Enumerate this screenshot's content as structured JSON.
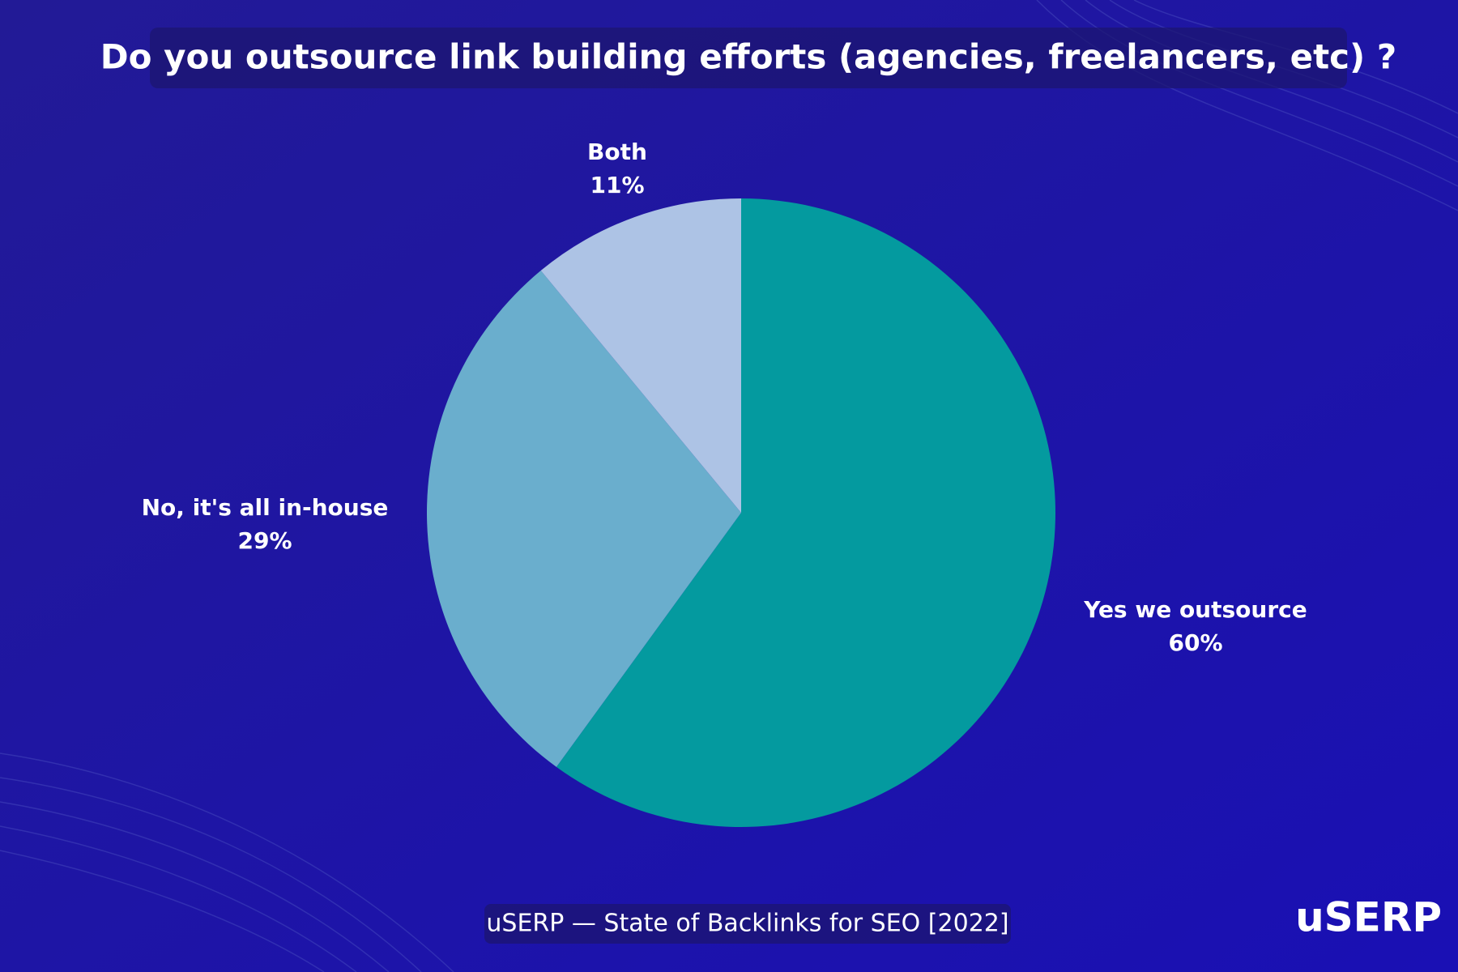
{
  "chart_data": {
    "type": "pie",
    "title": "Do you outsource link building efforts (agencies, freelancers, etc) ?",
    "categories": [
      "Yes we outsource",
      "No, it's all in-house",
      "Both"
    ],
    "values": [
      60,
      29,
      11
    ],
    "value_labels": [
      "60%",
      "29%",
      "11%"
    ],
    "colors": [
      "#049a9f",
      "#6aaecd",
      "#adc3e5"
    ],
    "source": "uSERP — State of Backlinks for SEO [2022]",
    "logo": "uSERP"
  }
}
